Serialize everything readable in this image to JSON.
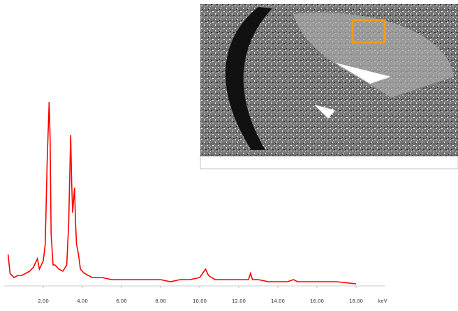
{
  "chart_data": {
    "type": "line",
    "xlabel": "keV",
    "x": [
      0.2,
      0.3,
      0.5,
      0.7,
      0.9,
      1.1,
      1.3,
      1.5,
      1.7,
      1.8,
      1.9,
      2.0,
      2.1,
      2.2,
      2.3,
      2.35,
      2.4,
      2.5,
      2.6,
      2.8,
      3.0,
      3.2,
      3.3,
      3.4,
      3.45,
      3.5,
      3.6,
      3.65,
      3.7,
      3.8,
      3.9,
      4.1,
      4.3,
      4.5,
      5.0,
      5.5,
      6.0,
      6.5,
      7.0,
      7.5,
      8.0,
      8.5,
      9.0,
      9.5,
      10.0,
      10.3,
      10.45,
      10.6,
      10.8,
      11.0,
      11.5,
      12.0,
      12.5,
      12.6,
      12.7,
      13.0,
      13.5,
      14.0,
      14.5,
      14.8,
      15.0,
      16.0,
      17.0,
      18.0
    ],
    "series": [
      {
        "color": "#ff0000",
        "values": [
          15,
          6,
          4,
          5,
          5,
          6,
          7,
          9,
          13,
          8,
          10,
          12,
          20,
          60,
          88,
          70,
          25,
          10,
          10,
          8,
          7,
          10,
          30,
          72,
          50,
          35,
          47,
          30,
          20,
          15,
          8,
          6,
          5,
          4,
          4,
          3,
          3,
          3,
          3,
          3,
          3,
          2,
          3,
          3,
          4,
          8,
          5,
          4,
          3,
          3,
          3,
          3,
          3,
          6,
          3,
          3,
          2,
          2,
          2,
          3,
          2,
          2,
          2,
          1
        ]
      }
    ],
    "xlim": [
      0,
      19.5
    ],
    "xticks": [
      {
        "value": 2,
        "label": "2.00"
      },
      {
        "value": 4,
        "label": "4.00"
      },
      {
        "value": 6,
        "label": "6.00"
      },
      {
        "value": 8,
        "label": "8.00"
      },
      {
        "value": 10,
        "label": "10.00"
      },
      {
        "value": 12,
        "label": "12.00"
      },
      {
        "value": 14,
        "label": "14.00"
      },
      {
        "value": 16,
        "label": "16.00"
      },
      {
        "value": 18,
        "label": "18.00"
      }
    ],
    "ylim": [
      0,
      100
    ]
  }
}
